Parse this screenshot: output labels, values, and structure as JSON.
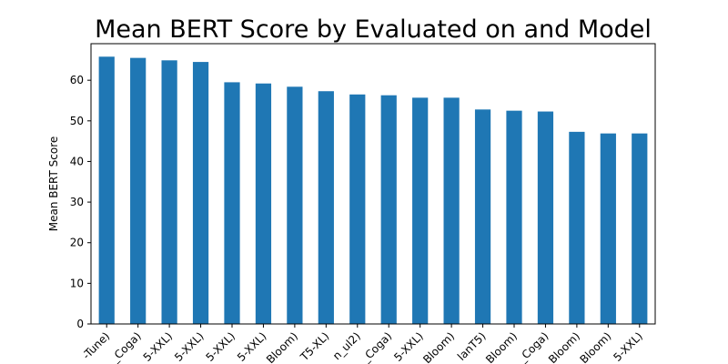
{
  "chart_data": {
    "type": "bar",
    "title": "Mean BERT Score by Evaluated on and Model",
    "xlabel": "",
    "ylabel": "Mean BERT Score",
    "ylim": [
      0,
      69
    ],
    "yticks": [
      0,
      10,
      20,
      30,
      40,
      50,
      60
    ],
    "grid": false,
    "legend": "none",
    "bar_color": "#1f77b4",
    "categories": [
      "-Tune)",
      "_Coga)",
      "5-XXL)",
      "5-XXL)",
      "5-XXL)",
      "5-XXL)",
      "Bloom)",
      "T5-XL)",
      "n_ul2)",
      "_Coga)",
      "5-XXL)",
      "Bloom)",
      "lanT5)",
      "Bloom)",
      "_Coga)",
      "Bloom)",
      "Bloom)",
      "5-XXL)"
    ],
    "values": [
      65.8,
      65.5,
      64.9,
      64.5,
      59.5,
      59.2,
      58.4,
      57.3,
      56.5,
      56.3,
      55.7,
      55.7,
      52.8,
      52.5,
      52.3,
      47.3,
      46.9,
      46.9
    ]
  }
}
